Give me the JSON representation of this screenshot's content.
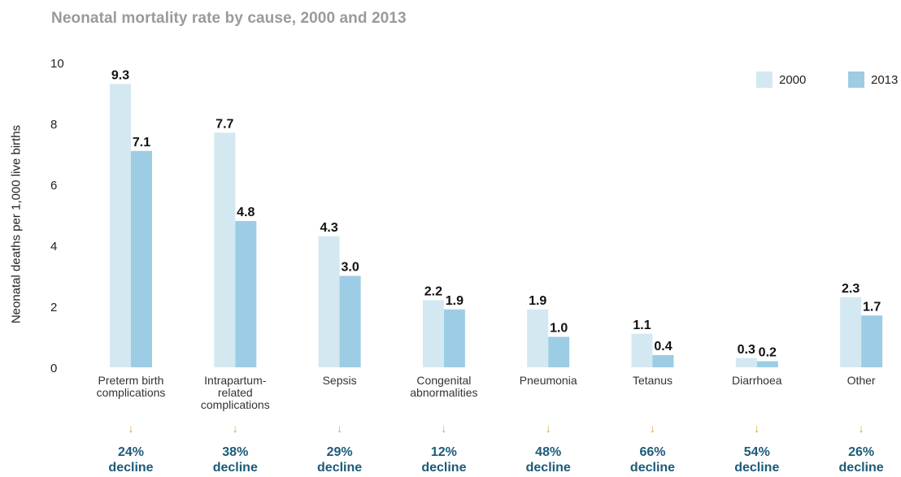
{
  "chart_data": {
    "type": "bar",
    "title": "Neonatal mortality rate by cause, 2000 and 2013",
    "ylabel": "Neonatal deaths per 1,000 live births",
    "xlabel": "",
    "ylim": [
      0,
      10
    ],
    "yticks": [
      0,
      2,
      4,
      6,
      8,
      10
    ],
    "grid": false,
    "legend_position": "top-right",
    "categories": [
      [
        "Preterm birth",
        "complications"
      ],
      [
        "Intrapartum-",
        "related",
        "complications"
      ],
      [
        "Sepsis"
      ],
      [
        "Congenital",
        "abnormalities"
      ],
      [
        "Pneumonia"
      ],
      [
        "Tetanus"
      ],
      [
        "Diarrhoea"
      ],
      [
        "Other"
      ]
    ],
    "series": [
      {
        "name": "2000",
        "color": "#d4e8f1",
        "values": [
          9.3,
          7.7,
          4.3,
          2.2,
          1.9,
          1.1,
          0.3,
          2.3
        ],
        "labels": [
          "9.3",
          "7.7",
          "4.3",
          "2.2",
          "1.9",
          "1.1",
          "0.3",
          "2.3"
        ]
      },
      {
        "name": "2013",
        "color": "#9ccde4",
        "values": [
          7.1,
          4.8,
          3.0,
          1.9,
          1.0,
          0.4,
          0.2,
          1.7
        ],
        "labels": [
          "7.1",
          "4.8",
          "3.0",
          "1.9",
          "1.0",
          "0.4",
          "0.2",
          "1.7"
        ]
      }
    ],
    "annotations": {
      "arrow": "↓",
      "arrow_color": "#d6a92a",
      "percents": [
        "24%",
        "38%",
        "29%",
        "12%",
        "48%",
        "66%",
        "54%",
        "26%"
      ],
      "word": "decline",
      "color": "#1d5a78"
    }
  }
}
